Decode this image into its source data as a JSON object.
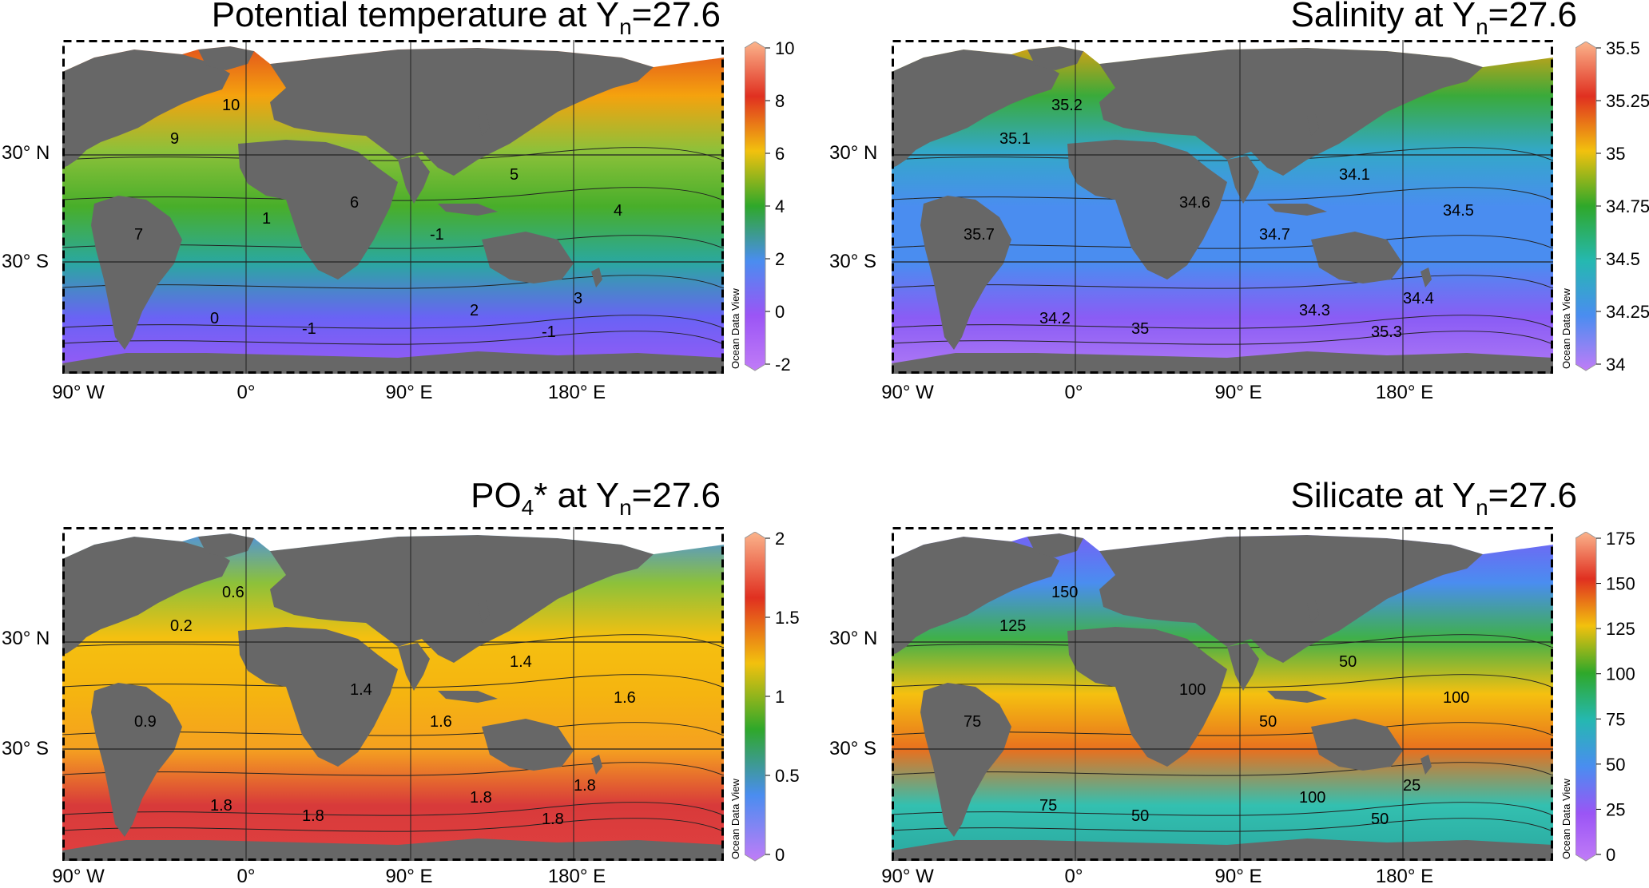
{
  "panels": [
    {
      "title_main": "Potential temperature at Y",
      "title_sub": "n",
      "title_value": "=27.6",
      "lat_labels": [
        "30° N",
        "30° S"
      ],
      "lon_labels": [
        "90° W",
        "0°",
        "90° E",
        "180° E"
      ],
      "colorbar_ticks": [
        "10",
        "8",
        "6",
        "4",
        "2",
        "0",
        "-2"
      ],
      "colorbar_colors": [
        "#fbb48c",
        "#e03020",
        "#f2c10e",
        "#2fa82a",
        "#4a8df0",
        "#9b55f5",
        "#c07cf7"
      ],
      "watermark": "Ocean Data View",
      "contour_labels": [
        "10",
        "9",
        "6",
        "4",
        "3",
        "2",
        "0",
        "-1",
        "-1",
        "-1",
        "5",
        "7",
        "1"
      ],
      "band_colors": [
        "#e04a1e",
        "#f5a20e",
        "#8cc13a",
        "#48ae2a",
        "#2aa8a0",
        "#6a62f5",
        "#9a5af5"
      ]
    },
    {
      "title_main": "Salinity at Y",
      "title_sub": "n",
      "title_value": "=27.6",
      "lat_labels": [
        "30° N",
        "30° S"
      ],
      "lon_labels": [
        "90° W",
        "0°",
        "90° E",
        "180° E"
      ],
      "colorbar_ticks": [
        "35.5",
        "35.25",
        "35",
        "34.75",
        "34.5",
        "34.25",
        "34"
      ],
      "colorbar_colors": [
        "#fbb48c",
        "#e03020",
        "#f2c10e",
        "#2fa82a",
        "#25b8b0",
        "#4a8df0",
        "#c07cf7"
      ],
      "watermark": "Ocean Data View",
      "contour_labels": [
        "35.2",
        "35.1",
        "34.6",
        "34.5",
        "34.4",
        "34.3",
        "34.2",
        "35",
        "35.3",
        "34.7",
        "34.1",
        "35.7"
      ],
      "band_colors": [
        "#e8a010",
        "#3aaa3a",
        "#33a8c8",
        "#4a8df0",
        "#4a8df0",
        "#8a5cf5",
        "#b07af5"
      ]
    },
    {
      "title_main": "PO",
      "title_sub": "4",
      "title_value": "* at Y",
      "title_sub2": "n",
      "title_value2": "=27.6",
      "lat_labels": [
        "30° N",
        "30° S"
      ],
      "lon_labels": [
        "90° W",
        "0°",
        "90° E",
        "180° E"
      ],
      "colorbar_ticks": [
        "2",
        "1.5",
        "1",
        "0.5",
        "0"
      ],
      "colorbar_colors": [
        "#fbb48c",
        "#e03020",
        "#f2c10e",
        "#2fa82a",
        "#4a8df0",
        "#c07cf7"
      ],
      "watermark": "Ocean Data View",
      "contour_labels": [
        "0.6",
        "0.2",
        "1.4",
        "1.6",
        "1.8",
        "1.8",
        "1.8",
        "1.8",
        "1.8",
        "1.6",
        "1.4",
        "0.9"
      ],
      "band_colors": [
        "#4a8df0",
        "#8cc13a",
        "#f5c010",
        "#f5b410",
        "#f5a020",
        "#d83a3a",
        "#e04040"
      ]
    },
    {
      "title_main": "Silicate at Y",
      "title_sub": "n",
      "title_value": "=27.6",
      "lat_labels": [
        "30° N",
        "30° S"
      ],
      "lon_labels": [
        "90° W",
        "0°",
        "90° E",
        "180° E"
      ],
      "colorbar_ticks": [
        "175",
        "150",
        "125",
        "100",
        "75",
        "50",
        "25",
        "0"
      ],
      "colorbar_colors": [
        "#fbb48c",
        "#e03020",
        "#f2c10e",
        "#2fa82a",
        "#25b8b0",
        "#4a8df0",
        "#9b55f5",
        "#c07cf7"
      ],
      "watermark": "Ocean Data View",
      "contour_labels": [
        "150",
        "125",
        "100",
        "100",
        "25",
        "100",
        "75",
        "50",
        "50",
        "50",
        "50",
        "75"
      ],
      "band_colors": [
        "#7a5cf5",
        "#4a8df0",
        "#3fb04a",
        "#f5c010",
        "#e8701e",
        "#33c0b0",
        "#2aa8a0"
      ]
    }
  ]
}
